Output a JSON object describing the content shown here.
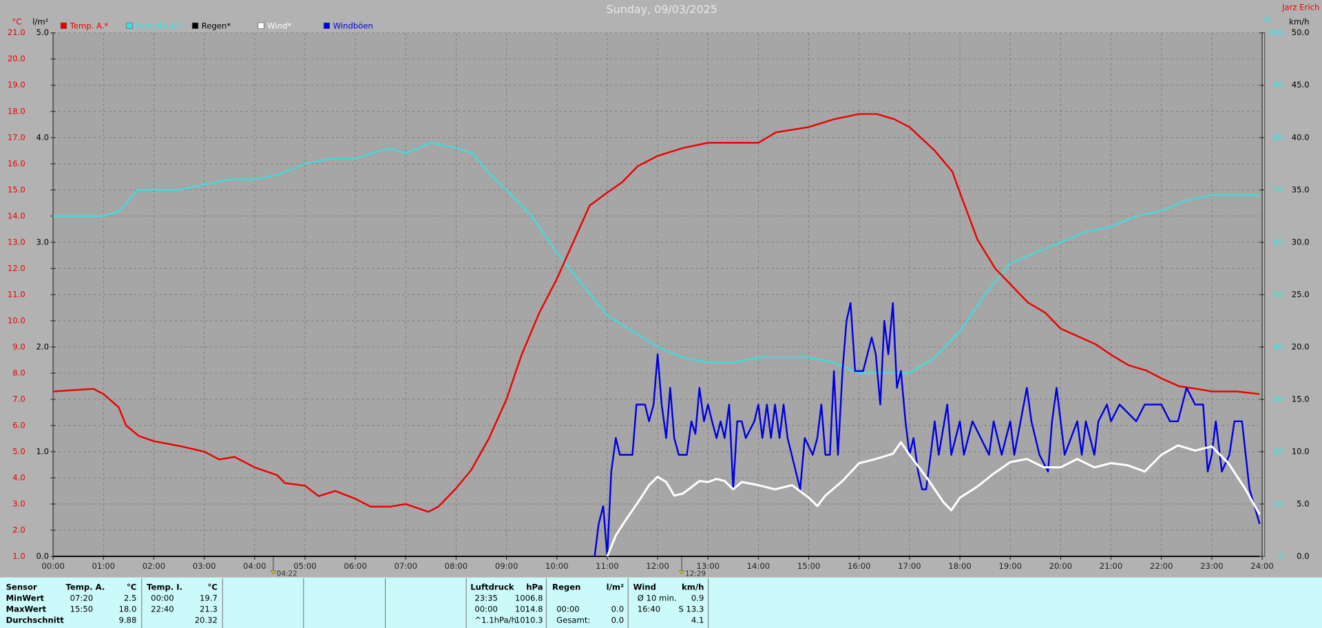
{
  "chart_data": {
    "type": "line",
    "title": "Sunday, 09/03/2025",
    "station": "Jarz Erich",
    "ylabel": "°C",
    "y2label": "l/m²",
    "y3label": "%",
    "y4label": "km/h",
    "xlim": [
      0,
      24
    ],
    "xticks": [
      {
        "value": 0,
        "label": "00:00"
      },
      {
        "value": 1,
        "label": "01:00"
      },
      {
        "value": 2,
        "label": "02:00"
      },
      {
        "value": 3,
        "label": "03:00"
      },
      {
        "value": 4,
        "label": "04:00"
      },
      {
        "value": 5,
        "label": "05:00"
      },
      {
        "value": 6,
        "label": "06:00"
      },
      {
        "value": 7,
        "label": "07:00"
      },
      {
        "value": 8,
        "label": "08:00"
      },
      {
        "value": 9,
        "label": "09:00"
      },
      {
        "value": 10,
        "label": "10:00"
      },
      {
        "value": 11,
        "label": "11:00"
      },
      {
        "value": 12,
        "label": "12:00"
      },
      {
        "value": 13,
        "label": "13:00"
      },
      {
        "value": 14,
        "label": "14:00"
      },
      {
        "value": 15,
        "label": "15:00"
      },
      {
        "value": 16,
        "label": "16:00"
      },
      {
        "value": 17,
        "label": "17:00"
      },
      {
        "value": 18,
        "label": "18:00"
      },
      {
        "value": 19,
        "label": "19:00"
      },
      {
        "value": 20,
        "label": "20:00"
      },
      {
        "value": 21,
        "label": "21:00"
      },
      {
        "value": 22,
        "label": "22:00"
      },
      {
        "value": 23,
        "label": "23:00"
      },
      {
        "value": 24,
        "label": "24:00"
      }
    ],
    "ylim": [
      1,
      21
    ],
    "yticks": [
      {
        "value": 1,
        "label": "1.0"
      },
      {
        "value": 2,
        "label": "2.0"
      },
      {
        "value": 3,
        "label": "3.0"
      },
      {
        "value": 4,
        "label": "4.0"
      },
      {
        "value": 5,
        "label": "5.0"
      },
      {
        "value": 6,
        "label": "6.0"
      },
      {
        "value": 7,
        "label": "7.0"
      },
      {
        "value": 8,
        "label": "8.0"
      },
      {
        "value": 9,
        "label": "9.0"
      },
      {
        "value": 10,
        "label": "10.0"
      },
      {
        "value": 11,
        "label": "11.0"
      },
      {
        "value": 12,
        "label": "12.0"
      },
      {
        "value": 13,
        "label": "13.0"
      },
      {
        "value": 14,
        "label": "14.0"
      },
      {
        "value": 15,
        "label": "15.0"
      },
      {
        "value": 16,
        "label": "16.0"
      },
      {
        "value": 17,
        "label": "17.0"
      },
      {
        "value": 18,
        "label": "18.0"
      },
      {
        "value": 19,
        "label": "19.0"
      },
      {
        "value": 20,
        "label": "20.0"
      },
      {
        "value": 21,
        "label": "21.0"
      }
    ],
    "y2lim": [
      0,
      5
    ],
    "y2ticks": [
      {
        "value": 0,
        "label": "0.0"
      },
      {
        "value": 1,
        "label": "1.0"
      },
      {
        "value": 2,
        "label": "2.0"
      },
      {
        "value": 3,
        "label": "3.0"
      },
      {
        "value": 4,
        "label": "4.0"
      },
      {
        "value": 5,
        "label": "5.0"
      }
    ],
    "y3lim": [
      0,
      100
    ],
    "y3ticks": [
      0,
      10,
      20,
      30,
      40,
      50,
      60,
      70,
      80,
      90,
      100
    ],
    "y4lim": [
      0,
      50
    ],
    "y4ticks": [
      {
        "value": 0,
        "label": "0.0"
      },
      {
        "value": 5,
        "label": "5.0"
      },
      {
        "value": 10,
        "label": "10.0"
      },
      {
        "value": 15,
        "label": "15.0"
      },
      {
        "value": 20,
        "label": "20.0"
      },
      {
        "value": 25,
        "label": "25.0"
      },
      {
        "value": 30,
        "label": "30.0"
      },
      {
        "value": 35,
        "label": "35.0"
      },
      {
        "value": 40,
        "label": "40.0"
      },
      {
        "value": 45,
        "label": "45.0"
      },
      {
        "value": 50,
        "label": "50.0"
      }
    ],
    "grid": true,
    "annotations": [
      {
        "text": "04:22",
        "x": 4.37
      },
      {
        "text": "12:29",
        "x": 12.48
      }
    ],
    "series": [
      {
        "name": "Temp. A.*",
        "color": "#ee0000",
        "axis": "y",
        "x": [
          0,
          0.8,
          1,
          1.3,
          1.45,
          1.7,
          2,
          2.55,
          3,
          3.3,
          3.6,
          4,
          4.45,
          4.6,
          5,
          5.27,
          5.6,
          6,
          6.3,
          6.7,
          7,
          7.45,
          7.65,
          8,
          8.3,
          8.65,
          9,
          9.3,
          9.65,
          10,
          10.3,
          10.65,
          11,
          11.3,
          11.6,
          12,
          12.5,
          13,
          13.6,
          14,
          14.35,
          15,
          15.5,
          16,
          16.35,
          16.7,
          17,
          17.5,
          17.85,
          18,
          18.35,
          18.7,
          19,
          19.35,
          19.7,
          20,
          20.35,
          20.7,
          21,
          21.35,
          21.7,
          22,
          22.35,
          22.7,
          23,
          23.5,
          23.95
        ],
        "values": [
          7.3,
          7.4,
          7.2,
          6.7,
          6.0,
          5.6,
          5.4,
          5.2,
          5.0,
          4.7,
          4.8,
          4.4,
          4.1,
          3.8,
          3.7,
          3.3,
          3.5,
          3.2,
          2.9,
          2.9,
          3.0,
          2.7,
          2.9,
          3.6,
          4.3,
          5.5,
          7.0,
          8.7,
          10.3,
          11.6,
          12.9,
          14.4,
          14.9,
          15.3,
          15.9,
          16.3,
          16.6,
          16.8,
          16.8,
          16.8,
          17.2,
          17.4,
          17.7,
          17.9,
          17.9,
          17.7,
          17.4,
          16.5,
          15.7,
          14.9,
          13.1,
          12.0,
          11.4,
          10.7,
          10.3,
          9.7,
          9.4,
          9.1,
          8.7,
          8.3,
          8.1,
          7.8,
          7.5,
          7.4,
          7.3,
          7.3,
          7.2
        ]
      },
      {
        "name": "Feuchte A.*",
        "color": "#2ee6e6",
        "axis": "y3",
        "x": [
          0,
          0.5,
          1,
          1.33,
          1.67,
          2,
          2.5,
          3,
          3.5,
          4,
          4.5,
          5,
          5.5,
          6,
          6.33,
          6.67,
          7,
          7.5,
          8,
          8.33,
          8.67,
          9,
          9.5,
          10,
          10.5,
          11,
          11.5,
          12,
          12.5,
          13,
          13.5,
          14,
          14.5,
          15,
          15.5,
          16,
          16.5,
          17,
          17.5,
          18,
          18.5,
          19,
          19.5,
          20,
          20.5,
          21,
          21.5,
          22,
          22.5,
          23,
          23.5,
          23.95
        ],
        "values": [
          65,
          65,
          65,
          66,
          70,
          70,
          70,
          71,
          72,
          72,
          73,
          75,
          76,
          76,
          77,
          78,
          77,
          79,
          78,
          77,
          73,
          70,
          65,
          58,
          52,
          46,
          43,
          40,
          38,
          37,
          37,
          38,
          38,
          38,
          37,
          35,
          35,
          35,
          38,
          43,
          50,
          56,
          58,
          60,
          62,
          63,
          65,
          66,
          68,
          69,
          69,
          69
        ]
      },
      {
        "name": "Regen*",
        "color": "#000000",
        "axis": "y2",
        "x": [
          0,
          23.95
        ],
        "values": [
          0,
          0
        ]
      },
      {
        "name": "Wind*",
        "color": "#ffffff",
        "axis": "y4",
        "x": [
          11,
          11.17,
          11.33,
          11.5,
          11.67,
          11.83,
          12,
          12.17,
          12.33,
          12.5,
          12.67,
          12.83,
          13,
          13.17,
          13.33,
          13.5,
          13.67,
          14,
          14.33,
          14.67,
          15,
          15.17,
          15.33,
          15.67,
          16,
          16.33,
          16.67,
          16.83,
          17,
          17.33,
          17.67,
          17.83,
          18,
          18.33,
          18.67,
          19,
          19.33,
          19.67,
          20,
          20.33,
          20.67,
          21,
          21.33,
          21.67,
          22,
          22.33,
          22.67,
          23,
          23.33,
          23.67,
          23.95
        ],
        "values": [
          0,
          2.0,
          3.2,
          4.4,
          5.6,
          6.8,
          7.6,
          7.1,
          5.8,
          6.0,
          6.6,
          7.2,
          7.1,
          7.4,
          7.2,
          6.4,
          7.1,
          6.8,
          6.4,
          6.8,
          5.6,
          4.8,
          5.8,
          7.2,
          8.9,
          9.3,
          9.8,
          10.9,
          9.7,
          7.6,
          5.2,
          4.4,
          5.6,
          6.6,
          7.9,
          9.0,
          9.3,
          8.5,
          8.5,
          9.3,
          8.5,
          8.9,
          8.7,
          8.1,
          9.7,
          10.6,
          10.1,
          10.5,
          8.9,
          6.4,
          4.0
        ]
      },
      {
        "name": "Windböen",
        "color": "#0000e0",
        "axis": "y4",
        "x": [
          10.75,
          10.83,
          10.92,
          11,
          11.08,
          11.17,
          11.25,
          11.5,
          11.58,
          11.75,
          11.83,
          11.92,
          12,
          12.08,
          12.17,
          12.25,
          12.33,
          12.42,
          12.58,
          12.67,
          12.75,
          12.83,
          12.92,
          13,
          13.08,
          13.17,
          13.25,
          13.33,
          13.42,
          13.5,
          13.58,
          13.67,
          13.75,
          13.92,
          14,
          14.08,
          14.17,
          14.25,
          14.33,
          14.42,
          14.5,
          14.58,
          14.83,
          14.92,
          15.08,
          15.17,
          15.25,
          15.33,
          15.42,
          15.5,
          15.58,
          15.67,
          15.75,
          15.83,
          15.92,
          16.08,
          16.25,
          16.33,
          16.42,
          16.5,
          16.58,
          16.67,
          16.75,
          16.83,
          16.92,
          17,
          17.08,
          17.17,
          17.25,
          17.33,
          17.42,
          17.5,
          17.58,
          17.75,
          17.83,
          18,
          18.08,
          18.25,
          18.58,
          18.67,
          18.83,
          19,
          19.08,
          19.33,
          19.42,
          19.58,
          19.75,
          19.83,
          19.92,
          20,
          20.08,
          20.33,
          20.42,
          20.5,
          20.67,
          20.75,
          20.92,
          21,
          21.17,
          21.5,
          21.67,
          22,
          22.17,
          22.33,
          22.5,
          22.67,
          22.83,
          22.92,
          23,
          23.08,
          23.2,
          23.35,
          23.45,
          23.6,
          23.75,
          23.95
        ],
        "values": [
          0,
          3.1,
          4.8,
          0,
          8.1,
          11.3,
          9.7,
          9.7,
          14.5,
          14.5,
          12.9,
          14.5,
          19.3,
          14.5,
          11.3,
          16.1,
          11.3,
          9.7,
          9.7,
          12.9,
          11.7,
          16.1,
          12.9,
          14.5,
          12.9,
          11.3,
          12.9,
          11.3,
          14.5,
          6.4,
          12.9,
          12.9,
          11.3,
          12.9,
          14.5,
          11.3,
          14.5,
          11.3,
          14.5,
          11.3,
          14.5,
          11.3,
          6.4,
          11.3,
          9.7,
          11.3,
          14.5,
          9.7,
          9.7,
          17.7,
          9.7,
          17.7,
          22.5,
          24.2,
          17.7,
          17.7,
          20.9,
          19.3,
          14.5,
          22.5,
          19.3,
          24.2,
          16.1,
          17.7,
          12.9,
          9.7,
          11.3,
          8.1,
          6.4,
          6.4,
          9.7,
          12.9,
          9.7,
          14.5,
          9.7,
          12.9,
          9.7,
          12.9,
          9.7,
          12.9,
          9.7,
          12.9,
          9.7,
          16.1,
          12.9,
          9.7,
          8.1,
          12.9,
          16.1,
          12.9,
          9.7,
          12.9,
          9.7,
          12.9,
          9.7,
          12.9,
          14.5,
          12.9,
          14.5,
          12.9,
          14.5,
          14.5,
          12.9,
          12.9,
          16.1,
          14.5,
          14.5,
          8.1,
          9.7,
          12.9,
          8.1,
          9.7,
          12.9,
          12.9,
          6.4,
          3.1
        ]
      }
    ]
  },
  "stats": {
    "row_labels": [
      "Sensor",
      "MinWert",
      "MaxWert",
      "Durchschnitt"
    ],
    "groups": [
      {
        "title": "Temp. A.",
        "unit": "°C",
        "rows": [
          [
            "07:20",
            "2.5"
          ],
          [
            "15:50",
            "18.0"
          ],
          [
            null,
            "9.88"
          ]
        ]
      },
      {
        "title": "Temp. I.",
        "unit": "°C",
        "rows": [
          [
            "00:00",
            "19.7"
          ],
          [
            "22:40",
            "21.3"
          ],
          [
            null,
            "20.32"
          ]
        ]
      },
      {
        "title": "Luftdruck",
        "unit": "hPa",
        "rows": [
          [
            "23:35",
            "1006.8"
          ],
          [
            "00:00",
            "1014.8"
          ],
          [
            "^1.1hPa/h",
            "1010.3"
          ]
        ]
      },
      {
        "title": "Regen",
        "unit": "l/m²",
        "rows": [
          [
            null,
            null
          ],
          [
            "00:00",
            "0.0"
          ],
          [
            "Gesamt:",
            "0.0"
          ]
        ]
      },
      {
        "title": "Wind",
        "unit": "km/h",
        "rows": [
          [
            "Ø 10 min.",
            "0.9"
          ],
          [
            "16:40",
            "S 13.3"
          ],
          [
            null,
            "4.1"
          ]
        ]
      }
    ]
  }
}
